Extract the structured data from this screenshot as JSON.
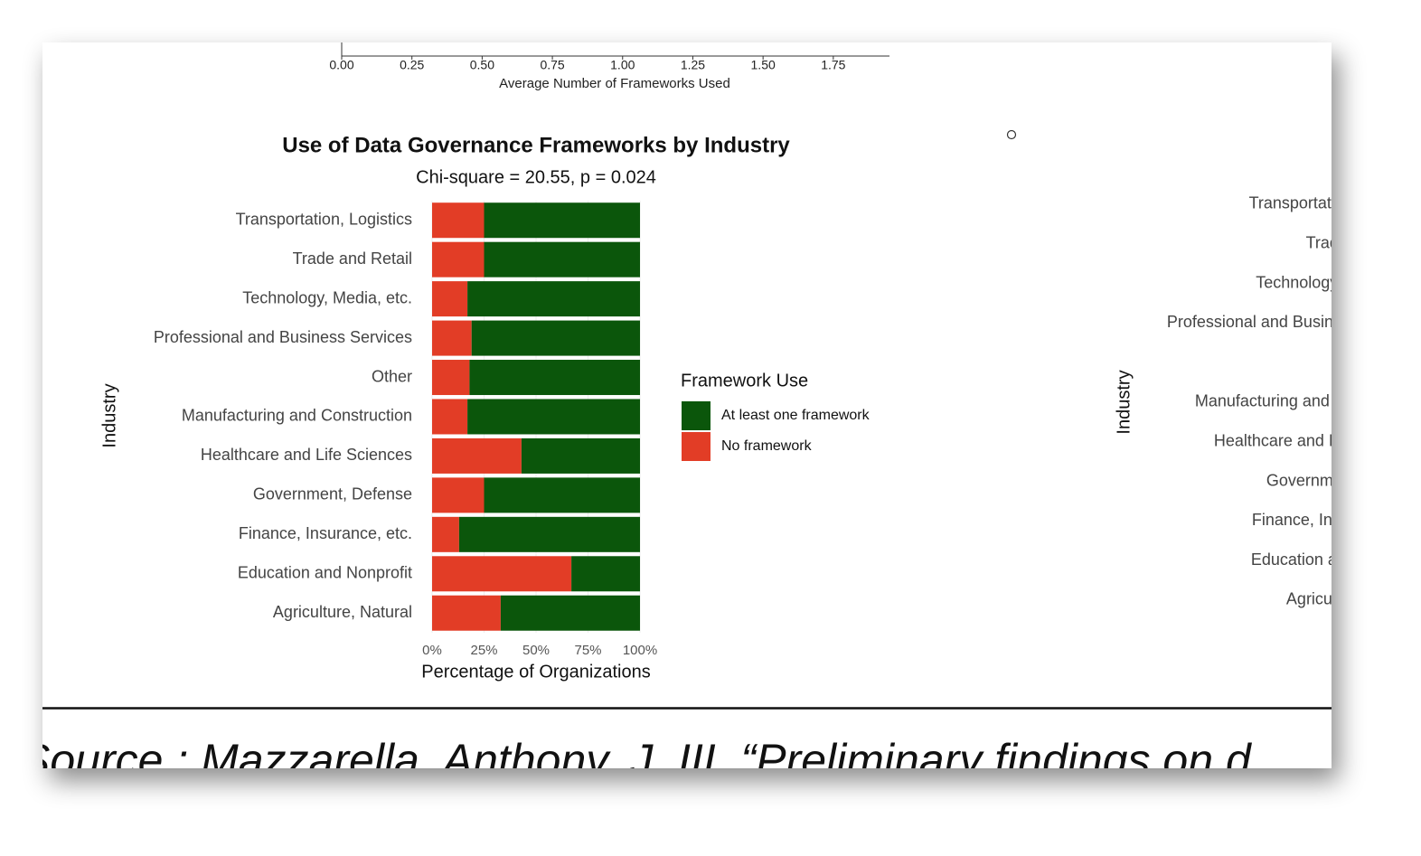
{
  "chart_data": [
    {
      "type": "bar",
      "xlabel": "Average Number of Frameworks Used",
      "xlim": [
        0,
        1.95
      ],
      "xticks": [
        {
          "value": 0,
          "label": "0.00"
        },
        {
          "value": 0.25,
          "label": "0.25"
        },
        {
          "value": 0.5,
          "label": "0.50"
        },
        {
          "value": 0.75,
          "label": "0.75"
        },
        {
          "value": 1,
          "label": "1.00"
        },
        {
          "value": 1.25,
          "label": "1.25"
        },
        {
          "value": 1.5,
          "label": "1.50"
        },
        {
          "value": 1.75,
          "label": "1.75"
        }
      ]
    },
    {
      "type": "stacked_bar",
      "orientation": "horizontal",
      "title": "Use of Data Governance Frameworks by Industry",
      "subtitle": "Chi-square = 20.55, p = 0.024",
      "xlabel": "Percentage of Organizations",
      "ylabel": "Industry",
      "categories": [
        "Transportation, Logistics",
        "Trade and Retail",
        "Technology, Media, etc.",
        "Professional and Business Services",
        "Other",
        "Manufacturing and Construction",
        "Healthcare and Life Sciences",
        "Government, Defense",
        "Finance, Insurance, etc.",
        "Education and Nonprofit",
        "Agriculture, Natural"
      ],
      "legend_title": "Framework Use",
      "series": [
        {
          "name": "At least one framework",
          "color": "#0b560b",
          "values": [
            75,
            75,
            83,
            81,
            82,
            83,
            57,
            75,
            87,
            33,
            67
          ]
        },
        {
          "name": "No framework",
          "color": "#e23d26",
          "values": [
            25,
            25,
            17,
            19,
            18,
            17,
            43,
            25,
            13,
            67,
            33
          ]
        }
      ],
      "xlim": [
        0,
        100
      ],
      "xticks": [
        {
          "value": 0,
          "label": "0%"
        },
        {
          "value": 25,
          "label": "25%"
        },
        {
          "value": 50,
          "label": "50%"
        },
        {
          "value": 75,
          "label": "75%"
        },
        {
          "value": 100,
          "label": "100%"
        }
      ]
    },
    {
      "type": "bar",
      "orientation": "horizontal",
      "ylabel": "Industry",
      "categories": [
        "Transportation, Logistics",
        "Trade and Retail",
        "Technology, Media, etc.",
        "Professional and Business Services",
        null,
        "Manufacturing and Construction",
        "Healthcare and Life Sciences",
        "Government, Defense",
        "Finance, Insurance, etc.",
        "Education and Nonprofit",
        "Agriculture, Natural"
      ]
    }
  ],
  "footer": {
    "source": "Source : Mazzarella, Anthony, J. III, “Preliminary findings on d"
  }
}
